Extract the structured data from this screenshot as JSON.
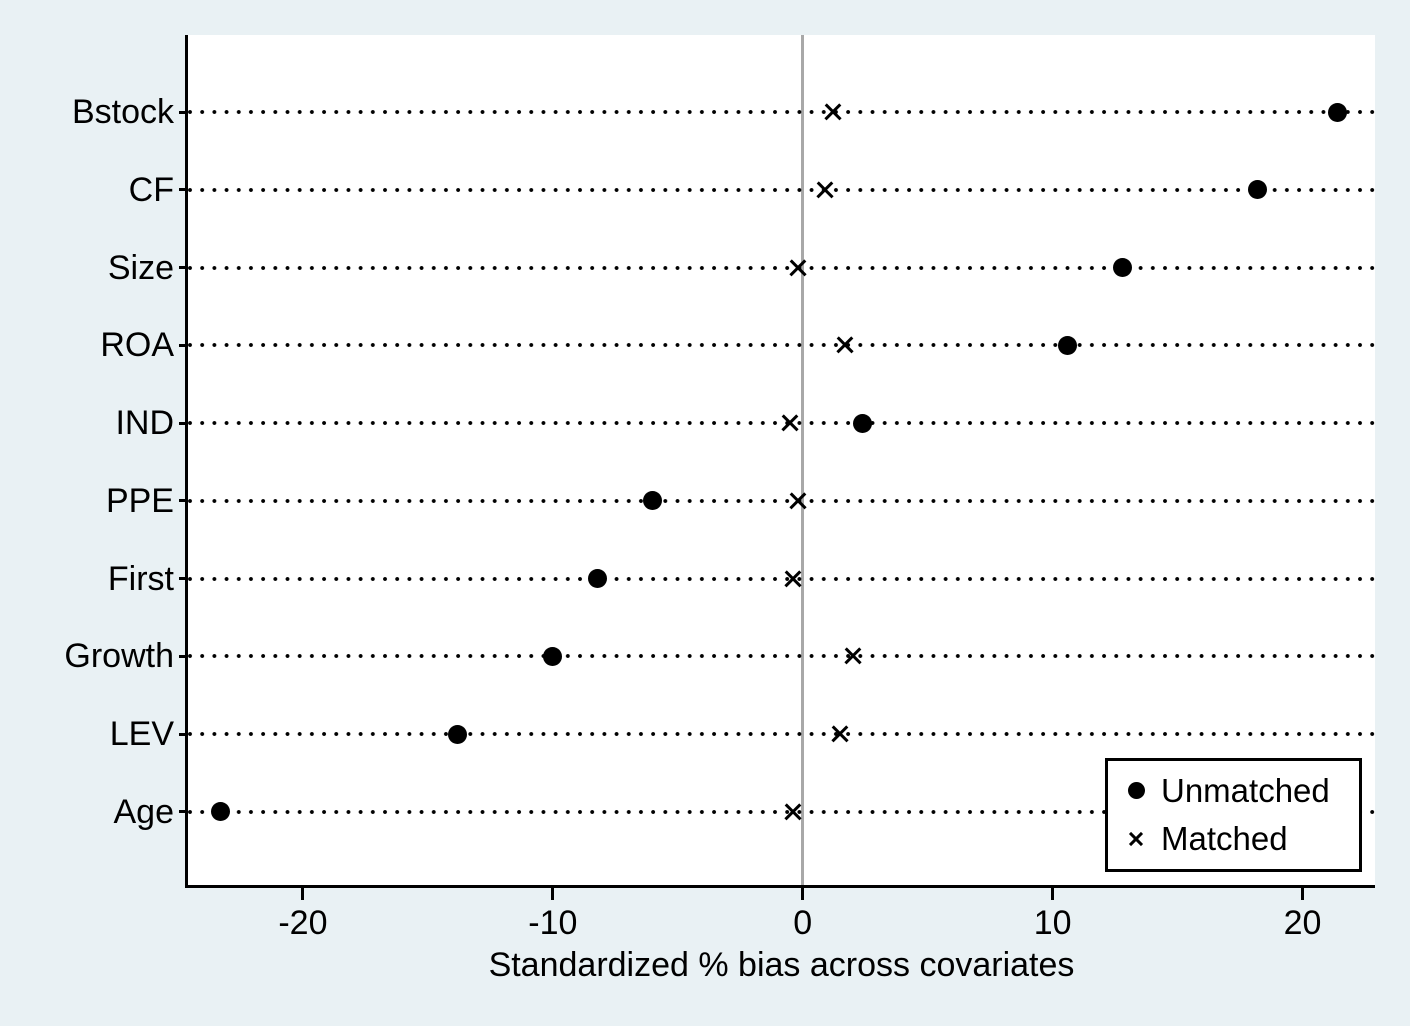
{
  "chart_data": {
    "type": "scatter",
    "variant": "dot-plot-balance",
    "title": "",
    "xlabel": "Standardized % bias across covariates",
    "categories": [
      "Bstock",
      "CF",
      "Size",
      "ROA",
      "IND",
      "PPE",
      "First",
      "Growth",
      "LEV",
      "Age"
    ],
    "series": [
      {
        "name": "Unmatched",
        "marker": "circle",
        "values": [
          21.4,
          18.2,
          12.8,
          10.6,
          2.4,
          -6.0,
          -8.2,
          -10.0,
          -13.8,
          -23.3
        ]
      },
      {
        "name": "Matched",
        "marker": "x",
        "values": [
          1.2,
          0.9,
          -0.2,
          1.7,
          -0.5,
          -0.2,
          -0.4,
          2.0,
          1.5,
          -0.4
        ]
      }
    ],
    "x_ticks": [
      -20,
      -10,
      0,
      10,
      20
    ],
    "x_tick_labels": [
      "-20",
      "-10",
      "0",
      "10",
      "20"
    ],
    "xlim": [
      -24.6,
      22.9
    ],
    "grid": "dotted-horizontal-guides",
    "zero_reference_line": true,
    "legend_position": "bottom-right"
  },
  "colors": {
    "background": "#e9f1f4",
    "plot_background": "#ffffff",
    "marker": "#000000",
    "zero_line": "#a8a8a8",
    "axis": "#000000"
  }
}
